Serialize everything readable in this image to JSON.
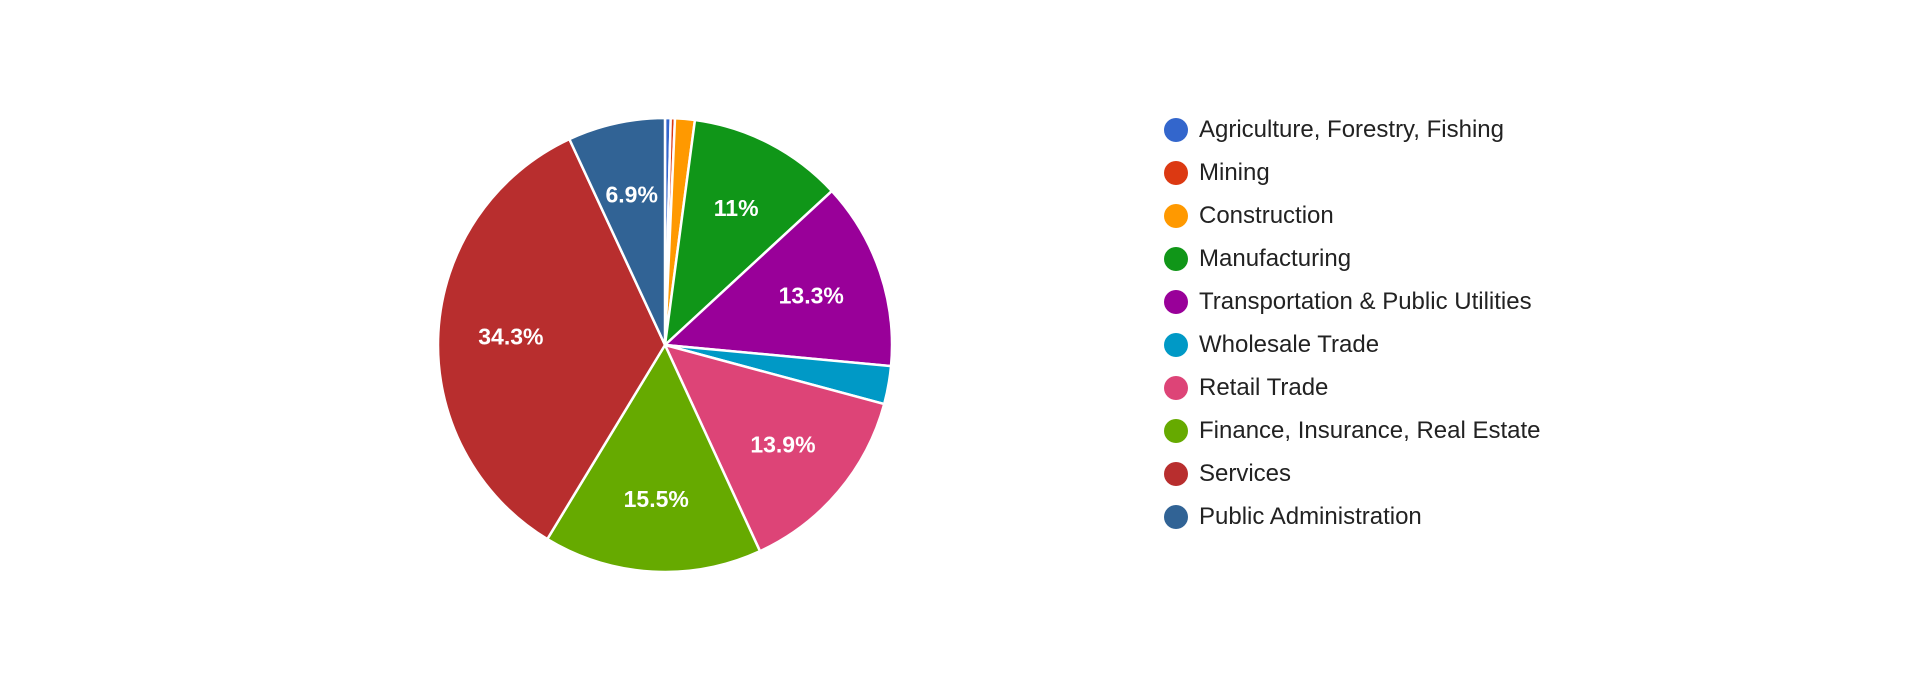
{
  "chart_data": {
    "type": "pie",
    "title": "",
    "legend_position": "right",
    "slices": [
      {
        "label": "Agriculture, Forestry, Fishing",
        "value": 0.4,
        "color": "#3366cc",
        "display": ""
      },
      {
        "label": "Mining",
        "value": 0.3,
        "color": "#dc3912",
        "display": ""
      },
      {
        "label": "Construction",
        "value": 1.4,
        "color": "#ff9900",
        "display": ""
      },
      {
        "label": "Manufacturing",
        "value": 11.0,
        "color": "#109618",
        "display": "11%"
      },
      {
        "label": "Transportation & Public Utilities",
        "value": 13.3,
        "color": "#990099",
        "display": "13.3%"
      },
      {
        "label": "Wholesale Trade",
        "value": 2.7,
        "color": "#0099c6",
        "display": ""
      },
      {
        "label": "Retail Trade",
        "value": 13.9,
        "color": "#dd4477",
        "display": "13.9%"
      },
      {
        "label": "Finance, Insurance, Real Estate",
        "value": 15.5,
        "color": "#66aa00",
        "display": "15.5%"
      },
      {
        "label": "Services",
        "value": 34.3,
        "color": "#b82e2e",
        "display": "34.3%"
      },
      {
        "label": "Public Administration",
        "value": 6.9,
        "color": "#316395",
        "display": "6.9%"
      }
    ]
  }
}
